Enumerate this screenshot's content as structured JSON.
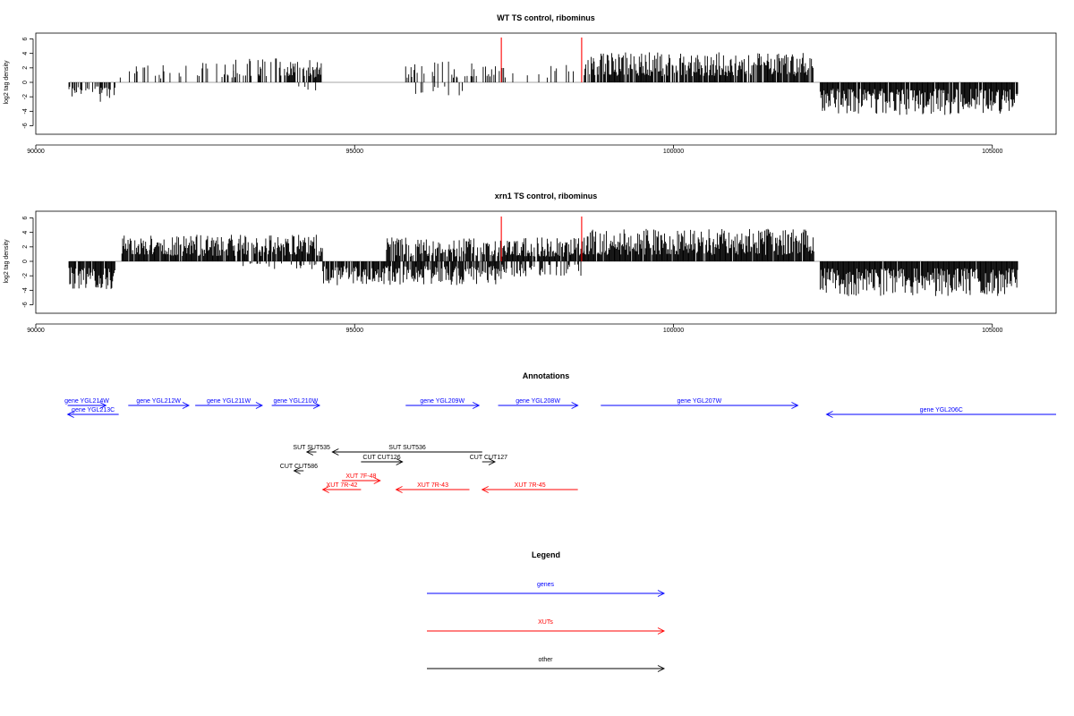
{
  "chart_data": [
    {
      "type": "bar",
      "title": "WT TS control, ribominus",
      "ylabel": "log2 tag density",
      "xlim": [
        90000,
        106000
      ],
      "ylim": [
        -6,
        6
      ],
      "yticks": [
        -6,
        -4,
        -2,
        0,
        2,
        4,
        6
      ],
      "xticks": [
        90000,
        95000,
        100000,
        105000
      ],
      "x_tick_labels": [
        "90000",
        "95000",
        "100000",
        "105000"
      ],
      "bar_color": "#000000",
      "highlight_color": "#ff0000",
      "highlights": [
        {
          "x": 97300,
          "y": 6.2
        },
        {
          "x": 98560,
          "y": 6.2
        }
      ],
      "segments": [
        {
          "x0": 90520,
          "x1": 91250,
          "sign": -1,
          "scale": 0.45,
          "density": 0.55,
          "seed": 11
        },
        {
          "x0": 91300,
          "x1": 93100,
          "sign": 1,
          "scale": 0.45,
          "density": 0.2,
          "seed": 12
        },
        {
          "x0": 93100,
          "x1": 93850,
          "sign": 1,
          "scale": 0.55,
          "density": 0.45,
          "seed": 13
        },
        {
          "x0": 93900,
          "x1": 94500,
          "sign": 1,
          "scale": 0.55,
          "density": 0.55,
          "seed": 14
        },
        {
          "x0": 94100,
          "x1": 94550,
          "sign": -1,
          "scale": 0.3,
          "density": 0.12,
          "seed": 15
        },
        {
          "x0": 95800,
          "x1": 96500,
          "sign": 1,
          "scale": 0.5,
          "density": 0.3,
          "seed": 16
        },
        {
          "x0": 95800,
          "x1": 96700,
          "sign": -1,
          "scale": 0.3,
          "density": 0.12,
          "seed": 17
        },
        {
          "x0": 96500,
          "x1": 97300,
          "sign": 1,
          "scale": 0.45,
          "density": 0.15,
          "seed": 18
        },
        {
          "x0": 97300,
          "x1": 98500,
          "sign": 1,
          "scale": 0.4,
          "density": 0.12,
          "seed": 19
        },
        {
          "x0": 98600,
          "x1": 102200,
          "sign": 1,
          "scale": 0.7,
          "density": 0.85,
          "seed": 20
        },
        {
          "x0": 102300,
          "x1": 105400,
          "sign": -1,
          "scale": 0.75,
          "density": 0.95,
          "seed": 21
        }
      ]
    },
    {
      "type": "bar",
      "title": "xrn1 TS control, ribominus",
      "ylabel": "log2 tag density",
      "xlim": [
        90000,
        106000
      ],
      "ylim": [
        -6,
        6
      ],
      "yticks": [
        -6,
        -4,
        -2,
        0,
        2,
        4,
        6
      ],
      "xticks": [
        90000,
        95000,
        100000,
        105000
      ],
      "x_tick_labels": [
        "90000",
        "95000",
        "100000",
        "105000"
      ],
      "bar_color": "#000000",
      "highlight_color": "#ff0000",
      "highlights": [
        {
          "x": 97300,
          "y": 6.2
        },
        {
          "x": 98560,
          "y": 6.2
        }
      ],
      "segments": [
        {
          "x0": 90520,
          "x1": 91250,
          "sign": -1,
          "scale": 0.65,
          "density": 0.9,
          "seed": 31
        },
        {
          "x0": 91350,
          "x1": 94500,
          "sign": 1,
          "scale": 0.62,
          "density": 0.9,
          "seed": 32
        },
        {
          "x0": 93000,
          "x1": 94500,
          "sign": -1,
          "scale": 0.2,
          "density": 0.15,
          "seed": 33
        },
        {
          "x0": 94500,
          "x1": 97300,
          "sign": -1,
          "scale": 0.55,
          "density": 0.8,
          "seed": 34
        },
        {
          "x0": 95500,
          "x1": 97300,
          "sign": 1,
          "scale": 0.55,
          "density": 0.8,
          "seed": 35
        },
        {
          "x0": 97300,
          "x1": 98600,
          "sign": 1,
          "scale": 0.55,
          "density": 0.9,
          "seed": 36
        },
        {
          "x0": 97300,
          "x1": 98600,
          "sign": -1,
          "scale": 0.35,
          "density": 0.35,
          "seed": 37
        },
        {
          "x0": 98600,
          "x1": 102200,
          "sign": 1,
          "scale": 0.75,
          "density": 0.97,
          "seed": 38
        },
        {
          "x0": 102300,
          "x1": 105400,
          "sign": -1,
          "scale": 0.8,
          "density": 0.98,
          "seed": 39
        }
      ]
    }
  ],
  "annotations": {
    "title": "Annotations",
    "xlim": [
      90000,
      106000
    ],
    "features": [
      {
        "label": "gene YGL214W",
        "x0": 90500,
        "x1": 91100,
        "dir": 1,
        "row": 0,
        "color": "#0000ff"
      },
      {
        "label": "gene YGL213C",
        "x0": 90500,
        "x1": 91300,
        "dir": -1,
        "row": 1,
        "color": "#0000ff"
      },
      {
        "label": "gene YGL212W",
        "x0": 91450,
        "x1": 92400,
        "dir": 1,
        "row": 0,
        "color": "#0000ff"
      },
      {
        "label": "gene YGL211W",
        "x0": 92500,
        "x1": 93550,
        "dir": 1,
        "row": 0,
        "color": "#0000ff"
      },
      {
        "label": "gene YGL210W",
        "x0": 93700,
        "x1": 94450,
        "dir": 1,
        "row": 0,
        "color": "#0000ff"
      },
      {
        "label": "gene YGL209W",
        "x0": 95800,
        "x1": 96950,
        "dir": 1,
        "row": 0,
        "color": "#0000ff"
      },
      {
        "label": "gene YGL208W",
        "x0": 97250,
        "x1": 98500,
        "dir": 1,
        "row": 0,
        "color": "#0000ff"
      },
      {
        "label": "gene YGL207W",
        "x0": 98860,
        "x1": 101950,
        "dir": 1,
        "row": 0,
        "color": "#0000ff"
      },
      {
        "label": "gene YGL206C",
        "x0": 102400,
        "x1": 106000,
        "dir": -1,
        "row": 1,
        "color": "#0000ff"
      },
      {
        "label": "SUT SUT535",
        "x0": 94250,
        "x1": 94400,
        "dir": -1,
        "row": 5,
        "color": "#000000"
      },
      {
        "label": "SUT SUT536",
        "x0": 94650,
        "x1": 97000,
        "dir": -1,
        "row": 5,
        "color": "#000000"
      },
      {
        "label": "CUT CUT126",
        "x0": 95100,
        "x1": 95750,
        "dir": 1,
        "row": 6,
        "color": "#000000"
      },
      {
        "label": "CUT CUT127",
        "x0": 97000,
        "x1": 97200,
        "dir": 1,
        "row": 6,
        "color": "#000000"
      },
      {
        "label": "CUT CUT586",
        "x0": 94050,
        "x1": 94200,
        "dir": -1,
        "row": 7,
        "color": "#000000"
      },
      {
        "label": "XUT 7F-48",
        "x0": 94800,
        "x1": 95400,
        "dir": 1,
        "row": 8,
        "color": "#ff0000"
      },
      {
        "label": "XUT 7R-42",
        "x0": 94500,
        "x1": 95100,
        "dir": -1,
        "row": 9,
        "color": "#ff0000"
      },
      {
        "label": "XUT 7R-43",
        "x0": 95650,
        "x1": 96800,
        "dir": -1,
        "row": 9,
        "color": "#ff0000"
      },
      {
        "label": "XUT 7R-45",
        "x0": 97000,
        "x1": 98500,
        "dir": -1,
        "row": 9,
        "color": "#ff0000"
      }
    ]
  },
  "legend": {
    "title": "Legend",
    "items": [
      {
        "label": "genes",
        "color": "#0000ff"
      },
      {
        "label": "XUTs",
        "color": "#ff0000"
      },
      {
        "label": "other",
        "color": "#000000"
      }
    ]
  }
}
